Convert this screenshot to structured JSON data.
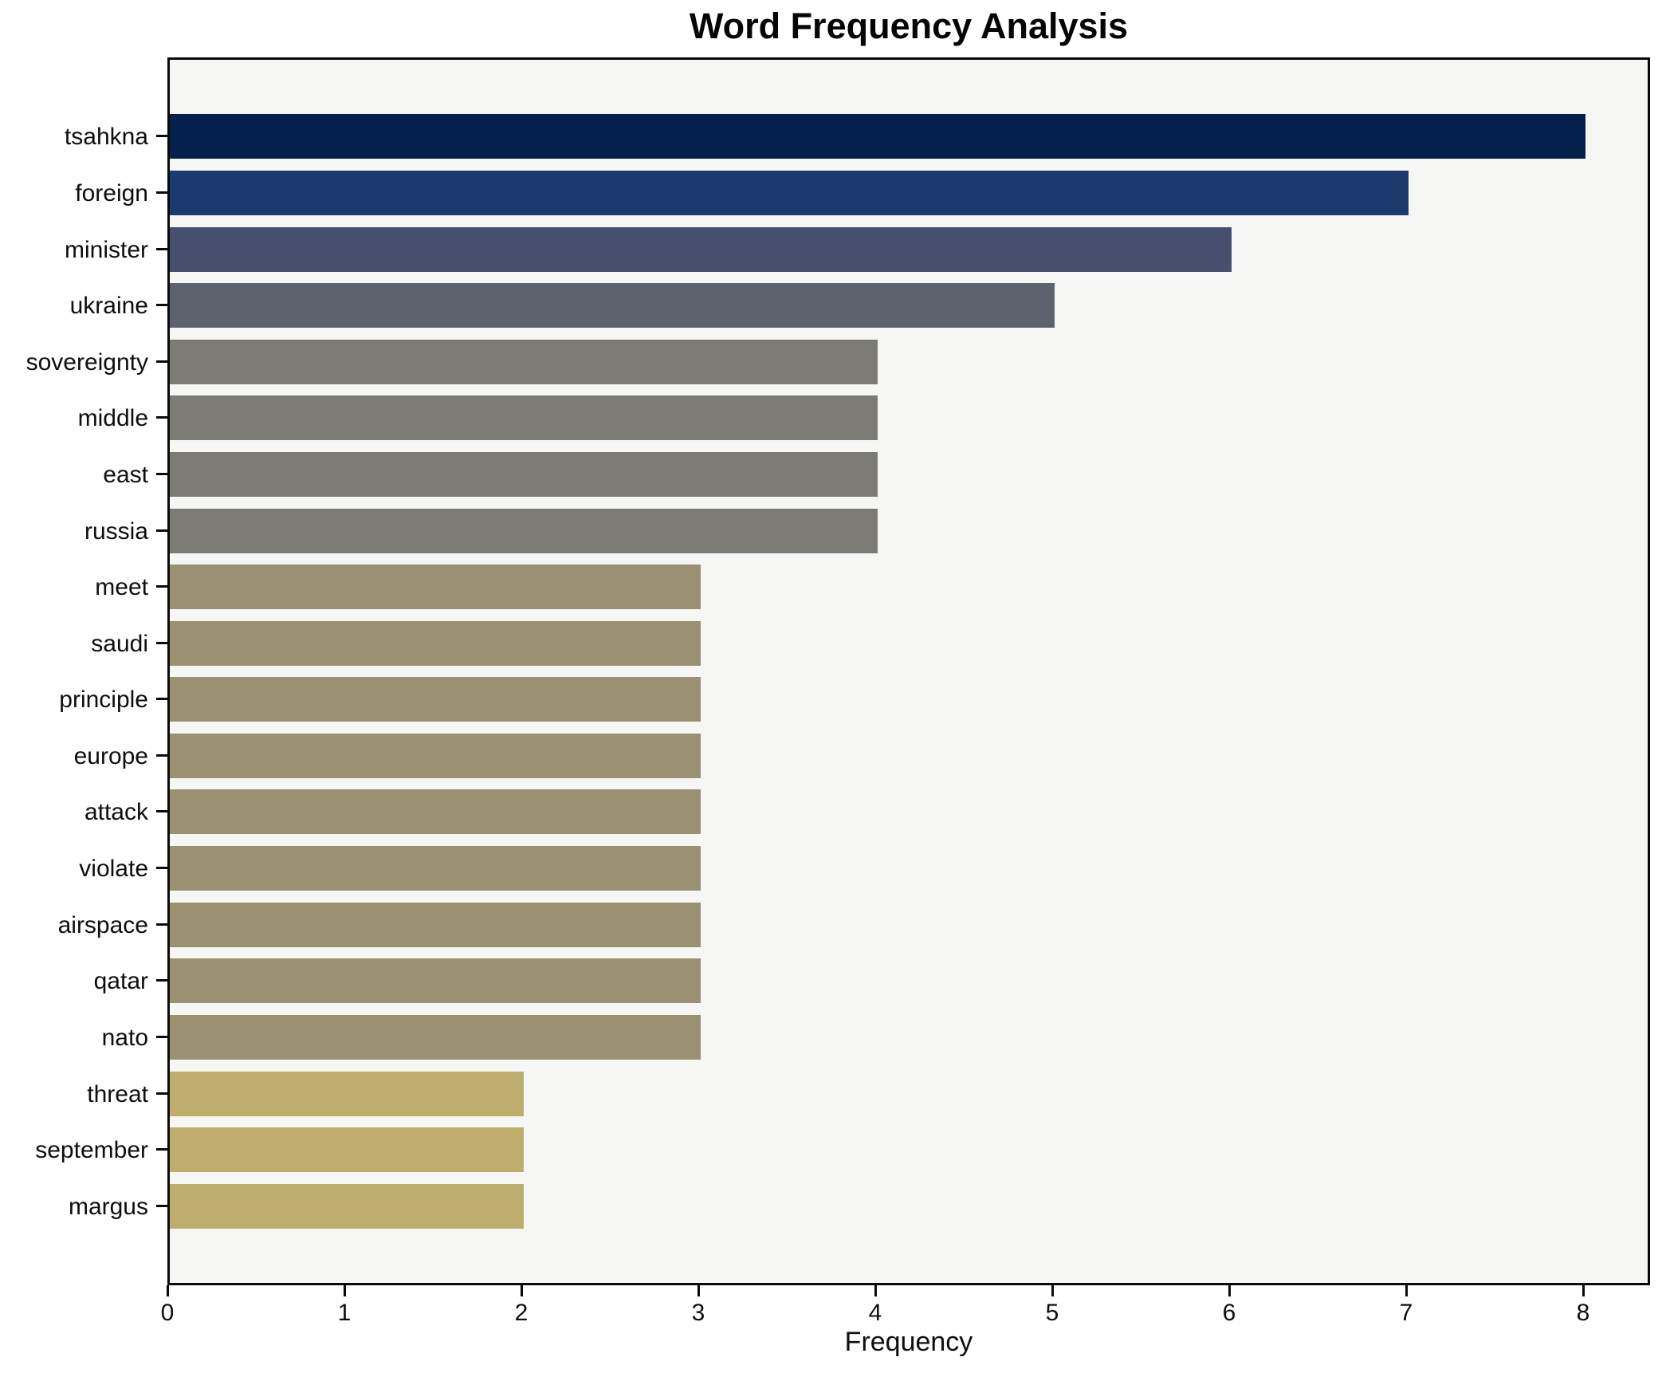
{
  "chart_data": {
    "type": "bar",
    "orientation": "horizontal",
    "title": "Word Frequency Analysis",
    "xlabel": "Frequency",
    "ylabel": "",
    "categories": [
      "tsahkna",
      "foreign",
      "minister",
      "ukraine",
      "sovereignty",
      "middle",
      "east",
      "russia",
      "meet",
      "saudi",
      "principle",
      "europe",
      "attack",
      "violate",
      "airspace",
      "qatar",
      "nato",
      "threat",
      "september",
      "margus"
    ],
    "values": [
      8,
      7,
      6,
      5,
      4,
      4,
      4,
      4,
      3,
      3,
      3,
      3,
      3,
      3,
      3,
      3,
      3,
      2,
      2,
      2
    ],
    "bar_colors": [
      "#04214d",
      "#1d3a6f",
      "#46506e",
      "#5e626c",
      "#7b7a74",
      "#7b7a74",
      "#7b7a74",
      "#7b7a74",
      "#9a9172",
      "#9a9172",
      "#9a9172",
      "#9a9172",
      "#9a9172",
      "#9a9172",
      "#9a9172",
      "#9a9172",
      "#9a9172",
      "#bcad6c",
      "#bcad6c",
      "#bcad6c"
    ],
    "x_ticks": [
      0,
      1,
      2,
      3,
      4,
      5,
      6,
      7,
      8
    ],
    "xlim": [
      0,
      8.35
    ],
    "grid": false,
    "legend": null,
    "plot_bg": "#f6f6f4",
    "figure_bg": "#ffffff",
    "spine_color": "#0a0a0a",
    "text_color": "#0e0e0e"
  }
}
